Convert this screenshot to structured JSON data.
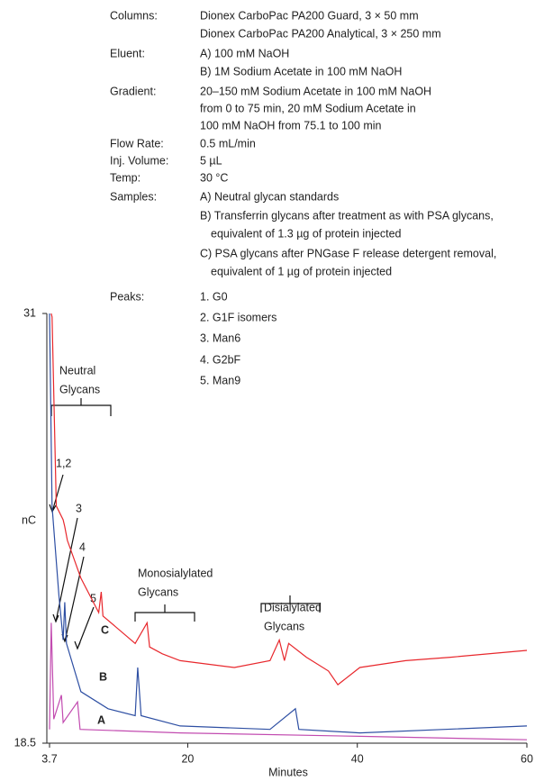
{
  "chart_data": {
    "type": "line",
    "conditions": [
      {
        "label": "Columns:",
        "lines": [
          "Dionex CarboPac PA200 Guard, 3 × 50 mm",
          "Dionex CarboPac PA200 Analytical, 3 × 250 mm"
        ]
      },
      {
        "label": "Eluent:",
        "lines": [
          "A) 100 mM NaOH",
          "B) 1M Sodium Acetate in 100 mM NaOH"
        ]
      },
      {
        "label": "Gradient:",
        "lines": [
          "20–150 mM Sodium Acetate in 100 mM NaOH",
          "from 0 to 75 min, 20 mM Sodium Acetate in",
          "100 mM NaOH from 75.1 to 100 min"
        ]
      },
      {
        "label": "Flow Rate:",
        "lines": [
          "0.5 mL/min"
        ]
      },
      {
        "label": "Inj. Volume:",
        "lines": [
          "5 µL"
        ]
      },
      {
        "label": "Temp:",
        "lines": [
          "30 °C"
        ]
      },
      {
        "label": "Samples:",
        "lines": [
          "A) Neutral glycan standards",
          "B) Transferrin glycans after treatment as with PSA glycans,",
          "equivalent of 1.3 µg of protein injected",
          "C) PSA glycans after PNGase F release detergent removal,",
          "equivalent of 1 µg of protein injected"
        ]
      },
      {
        "label": "Peaks:",
        "lines": [
          "1. G0",
          "2. G1F isomers",
          "3. Man6",
          "4. G2bF",
          "5. Man9"
        ]
      }
    ],
    "x_label": "Minutes",
    "y_label": "nC",
    "xlim": [
      3.7,
      60
    ],
    "xticks": [
      3.7,
      20,
      40,
      60
    ],
    "ylim": [
      18.5,
      31
    ],
    "yticks": [
      18.5,
      31
    ],
    "annotations": [
      {
        "text": [
          "Neutral",
          "Glycans"
        ]
      },
      {
        "text": [
          "1,2"
        ]
      },
      {
        "text": [
          "3"
        ]
      },
      {
        "text": [
          "4"
        ]
      },
      {
        "text": [
          "5"
        ]
      },
      {
        "text": [
          "Monosialylated",
          "Glycans"
        ]
      },
      {
        "text": [
          "Disialylated",
          "Glycans"
        ]
      }
    ],
    "series": [
      {
        "name": "C",
        "color": "#e8282d",
        "x": [
          3.9,
          4.0,
          4.5,
          5.3,
          5.5,
          5.8,
          7.4,
          9.5,
          9.8,
          10.0,
          13.8,
          15.2,
          15.5,
          17.0,
          19.1,
          25.5,
          29.7,
          30.8,
          31.4,
          31.9,
          34.0,
          36.6,
          37.7,
          40.3,
          45.7,
          51.0,
          60.0
        ],
        "values": [
          31.0,
          30.9,
          25.4,
          25.0,
          24.8,
          24.4,
          23.3,
          22.3,
          22.9,
          22.2,
          21.4,
          22.0,
          21.3,
          21.1,
          20.9,
          20.7,
          20.9,
          21.5,
          20.9,
          21.4,
          21.0,
          20.6,
          20.2,
          20.7,
          20.9,
          21.0,
          21.2
        ]
      },
      {
        "name": "B",
        "color": "#2e4fa3",
        "x": [
          3.7,
          4.0,
          4.8,
          5.3,
          5.5,
          5.7,
          7.4,
          10.6,
          13.8,
          14.1,
          14.5,
          19.1,
          29.7,
          32.7,
          33.1,
          40.3,
          60.0
        ],
        "values": [
          31.0,
          25.4,
          22.8,
          21.5,
          22.6,
          21.4,
          20.0,
          19.5,
          19.3,
          20.7,
          19.3,
          19.0,
          18.9,
          19.5,
          18.9,
          18.8,
          19.0
        ]
      },
      {
        "name": "A",
        "color": "#c24bb0",
        "x": [
          3.7,
          3.9,
          4.2,
          5.1,
          5.3,
          7.0,
          7.3,
          19.1,
          40.3,
          60.0
        ],
        "values": [
          18.9,
          22.0,
          19.2,
          19.9,
          19.1,
          19.7,
          18.9,
          18.8,
          18.7,
          18.6
        ]
      }
    ]
  }
}
